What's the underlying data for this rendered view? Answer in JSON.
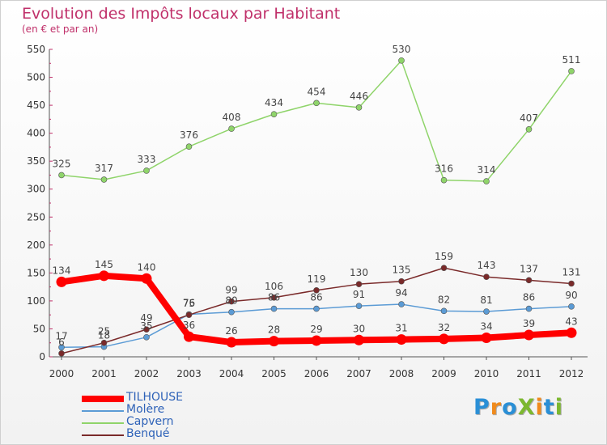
{
  "title": "Evolution des Impôts locaux par Habitant",
  "subtitle": "(en € et par an)",
  "logo": {
    "text": "ProXiti",
    "letters": [
      {
        "ch": "P",
        "color": "#2a8fd6"
      },
      {
        "ch": "r",
        "color": "#f08a1c"
      },
      {
        "ch": "o",
        "color": "#2a8fd6"
      },
      {
        "ch": "X",
        "color": "#7cb82f"
      },
      {
        "ch": "i",
        "color": "#f08a1c"
      },
      {
        "ch": "t",
        "color": "#2a8fd6"
      },
      {
        "ch": "i",
        "color": "#7cb82f"
      }
    ]
  },
  "chart_data": {
    "type": "line",
    "title": "Evolution des Impôts locaux par Habitant",
    "subtitle": "(en € et par an)",
    "categories": [
      "2000",
      "2001",
      "2002",
      "2003",
      "2004",
      "2005",
      "2006",
      "2007",
      "2008",
      "2009",
      "2010",
      "2011",
      "2012"
    ],
    "ylim": [
      0,
      550
    ],
    "yticks": [
      0,
      50,
      100,
      150,
      200,
      250,
      300,
      350,
      400,
      450,
      500,
      550
    ],
    "grid": false,
    "legend_position": "bottom-left",
    "series": [
      {
        "name": "TILHOUSE",
        "color": "#ff0000",
        "values": [
          134,
          145,
          140,
          36,
          26,
          28,
          29,
          30,
          31,
          32,
          34,
          39,
          43
        ],
        "labels": [
          "134",
          "145",
          "140",
          "36",
          "26",
          "28",
          "29",
          "30",
          "31",
          "32",
          "34",
          "39",
          "43"
        ]
      },
      {
        "name": "Molère",
        "color": "#5b9bd5",
        "values": [
          17,
          18,
          35,
          76,
          80,
          86,
          86,
          91,
          94,
          82,
          81,
          86,
          90
        ],
        "labels": [
          "17",
          "18",
          "35",
          "76",
          "80",
          "86",
          "86",
          "91",
          "94",
          "82",
          "81",
          "86",
          "90"
        ]
      },
      {
        "name": "Capvern",
        "color": "#8fd46a",
        "values": [
          325,
          317,
          333,
          376,
          408,
          434,
          454,
          446,
          530,
          316,
          314,
          407,
          511
        ],
        "labels": [
          "325",
          "317",
          "333",
          "376",
          "408",
          "434",
          "454",
          "446",
          "530",
          "316",
          "314",
          "407",
          "511"
        ]
      },
      {
        "name": "Benqué",
        "color": "#7a2a2a",
        "values": [
          6,
          25,
          49,
          75,
          99,
          106,
          119,
          130,
          135,
          159,
          143,
          137,
          131
        ],
        "labels": [
          "6",
          "25",
          "49",
          "75",
          "99",
          "106",
          "119",
          "130",
          "135",
          "159",
          "143",
          "137",
          "131"
        ]
      }
    ]
  }
}
